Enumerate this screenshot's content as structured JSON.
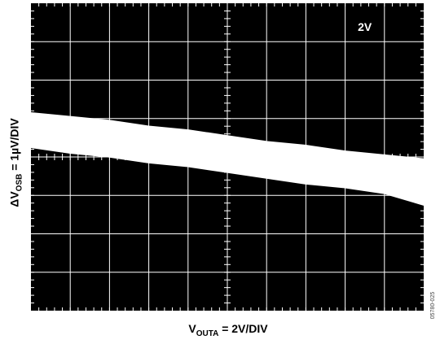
{
  "chart_data": {
    "type": "area",
    "title": "",
    "scale_label": "2V",
    "xlabel": {
      "main": "V",
      "sub": "OUTA",
      "rest": " = 2V/DIV"
    },
    "ylabel": {
      "main": "ΔV",
      "sub": "OSB",
      "rest": " = 1µV/DIV"
    },
    "divisions": {
      "x": 10,
      "y": 8
    },
    "xlim": [
      -10,
      10
    ],
    "ylim": [
      -4,
      4
    ],
    "grid": true,
    "series": [
      {
        "x": [
          -10,
          -8,
          -6,
          -4,
          -2,
          0,
          2,
          4,
          6,
          8,
          10
        ],
        "upper": [
          1.15,
          1.05,
          0.95,
          0.8,
          0.7,
          0.55,
          0.4,
          0.3,
          0.15,
          0.05,
          -0.05
        ],
        "lower": [
          0.25,
          0.1,
          0.0,
          -0.15,
          -0.25,
          -0.4,
          -0.55,
          -0.7,
          -0.8,
          -0.95,
          -1.25
        ]
      }
    ]
  },
  "figure_id": "05780-025",
  "colors": {
    "screen": "#000000",
    "grid": "#ffffff",
    "trace": "#ffffff",
    "text": "#000000"
  }
}
